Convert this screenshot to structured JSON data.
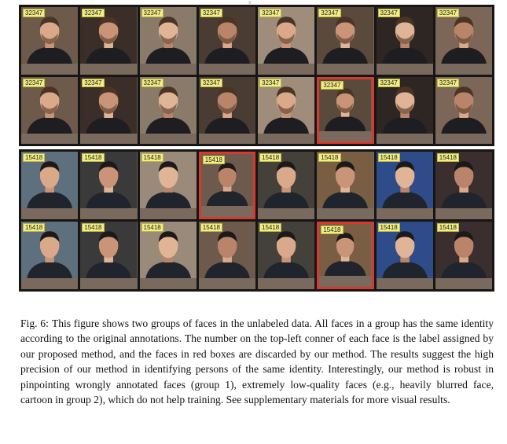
{
  "header_mark": "≡",
  "figure": {
    "groups": [
      {
        "id": "group1",
        "label": "32347",
        "palette": [
          "#6e5a4a",
          "#3b2e28",
          "#8a7a6a",
          "#4a3c33",
          "#a08c7a",
          "#5a4a3c",
          "#2e2622",
          "#7c6658"
        ],
        "rejected": [
          13
        ]
      },
      {
        "id": "group2",
        "label": "15418",
        "palette": [
          "#5e6f7e",
          "#3a3a3a",
          "#9a8a7a",
          "#6e5a4c",
          "#44403a",
          "#7a5e44",
          "#2e4c8a",
          "#3a2e2e"
        ],
        "rejected": [
          3,
          13
        ]
      }
    ]
  },
  "caption": {
    "prefix": "Fig. 6:",
    "text": "This figure shows two groups of faces in the unlabeled data. All faces in a group has the same identity according to the original annotations. The number on the top-left conner of each face is the label assigned by our proposed method, and the faces in red boxes are discarded by our method. The results suggest the high precision of our method in identifying persons of the same identity. Interestingly, our method is robust in pinpointing wrongly annotated faces (group 1), extremely low-quality faces (e.g., heavily blurred face, cartoon in group 2), which do not help training. See supplementary materials for more visual results."
  }
}
